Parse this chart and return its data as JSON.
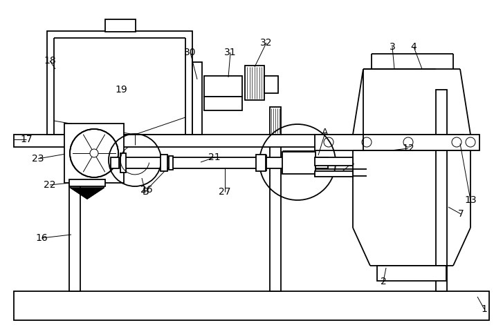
{
  "bg_color": "#ffffff",
  "line_color": "#000000",
  "lw": 1.3,
  "tlw": 0.7,
  "fs": 10,
  "figsize": [
    7.27,
    4.84
  ],
  "dpi": 100
}
